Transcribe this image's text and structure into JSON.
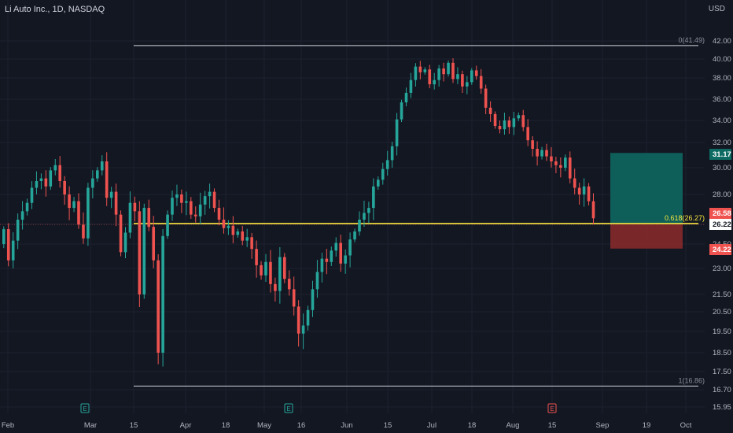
{
  "header": {
    "symbol_title": "Li Auto Inc., 1D, NASDAQ",
    "currency": "USD"
  },
  "colors": {
    "background": "#131722",
    "up": "#26a69a",
    "down": "#ef5350",
    "fib_line": "#d1d4dc",
    "yellow_line": "#f5e63d",
    "profit_zone": "#0e6b63",
    "loss_zone": "#8c2a2a"
  },
  "price_axis": {
    "ticks": [
      "42.00",
      "40.00",
      "38.00",
      "36.00",
      "34.00",
      "32.00",
      "30.00",
      "28.00",
      "24.50",
      "23.00",
      "21.50",
      "20.50",
      "19.50",
      "18.50",
      "17.50",
      "16.70",
      "15.95"
    ]
  },
  "price_labels": [
    {
      "text": "31.17",
      "color": "#0e6b63"
    },
    {
      "text": "26.58",
      "color": "#ef5350"
    },
    {
      "text": "26.22",
      "color": "#ffffff"
    },
    {
      "text": "24.22",
      "color": "#ef5350"
    }
  ],
  "fib": {
    "top_label": "0(41.49)",
    "mid_label": "0.618(26.27)",
    "bottom_label": "1(16.86)"
  },
  "time_axis": {
    "labels": [
      "Feb",
      "Mar",
      "15",
      "Apr",
      "18",
      "May",
      "16",
      "Jun",
      "15",
      "Jul",
      "18",
      "Aug",
      "15",
      "Sep",
      "19",
      "Oct"
    ]
  },
  "events": [
    {
      "letter": "E",
      "type": "earnings"
    },
    {
      "letter": "E",
      "type": "earnings"
    },
    {
      "letter": "E",
      "type": "earnings-upcoming"
    }
  ],
  "chart_data": {
    "type": "candlestick",
    "symbol": "Li Auto Inc.",
    "interval": "1D",
    "exchange": "NASDAQ",
    "closes": [
      25.8,
      23.5,
      24.8,
      26.5,
      27.0,
      27.5,
      28.5,
      29.0,
      29.2,
      28.6,
      29.8,
      30.2,
      29.0,
      28.0,
      27.2,
      27.6,
      26.2,
      25.0,
      28.5,
      29.2,
      29.8,
      30.5,
      27.8,
      28.2,
      26.8,
      24.0,
      25.5,
      27.5,
      27.0,
      21.5,
      27.2,
      26.0,
      23.5,
      18.5,
      25.2,
      26.8,
      27.8,
      28.0,
      27.5,
      27.6,
      26.8,
      26.7,
      27.4,
      27.9,
      28.2,
      27.2,
      26.5,
      25.9,
      26.1,
      25.3,
      25.6,
      24.8,
      25.1,
      24.2,
      23.2,
      22.6,
      23.4,
      22.1,
      21.7,
      23.7,
      22.4,
      21.8,
      20.8,
      19.4,
      19.8,
      20.6,
      21.8,
      22.8,
      23.6,
      23.4,
      24.1,
      24.6,
      23.3,
      23.8,
      24.9,
      25.6,
      26.5,
      26.9,
      27.2,
      28.6,
      29.1,
      29.9,
      30.6,
      31.7,
      34.1,
      35.7,
      36.6,
      37.8,
      39.2,
      38.6,
      38.9,
      37.4,
      37.8,
      39.0,
      38.4,
      39.6,
      37.9,
      38.4,
      37.2,
      37.6,
      38.8,
      38.2,
      37.0,
      35.2,
      34.6,
      33.5,
      33.2,
      34.0,
      33.4,
      34.2,
      34.5,
      33.4,
      32.2,
      31.5,
      30.9,
      31.4,
      30.9,
      30.5,
      30.2,
      30.0,
      30.8,
      29.2,
      28.5,
      28.0,
      28.6,
      27.6,
      26.58
    ],
    "current_price": 26.22,
    "price_axis_unit": "USD",
    "fibonacci": [
      {
        "level": "0",
        "price": 41.49
      },
      {
        "level": "0.618",
        "price": 26.27
      },
      {
        "level": "1",
        "price": 16.86
      }
    ],
    "position": {
      "entry": 26.22,
      "target": 31.17,
      "stop": 24.22
    }
  }
}
